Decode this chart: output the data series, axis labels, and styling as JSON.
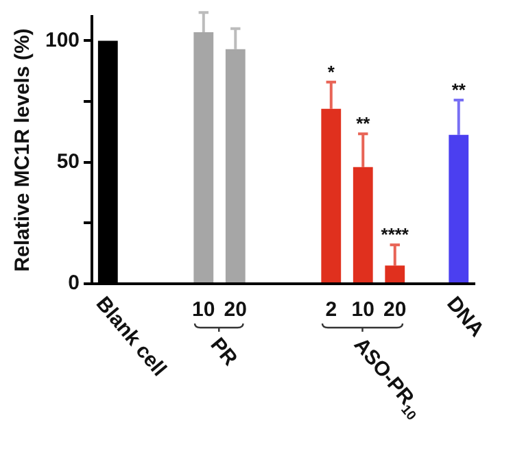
{
  "chart_data": {
    "type": "bar",
    "ylabel": "Relative MC1R levels (%)",
    "categories": [
      "Blank cell",
      null,
      null,
      "10",
      "20",
      null,
      null,
      "2",
      "10",
      "20",
      null,
      "DNA"
    ],
    "values": [
      100,
      null,
      null,
      103.5,
      96.5,
      null,
      null,
      72,
      48,
      7.5,
      null,
      61.3
    ],
    "colors": [
      "#000000",
      null,
      null,
      "#a6a6a6",
      "#a6a6a6",
      null,
      null,
      "#e0301e",
      "#e0301e",
      "#e0301e",
      null,
      "#4b3ff0"
    ],
    "errors": [
      null,
      null,
      null,
      [
        103.5,
        111.6
      ],
      [
        96.5,
        105
      ],
      null,
      null,
      [
        72,
        83
      ],
      [
        48,
        61.7
      ],
      [
        7.5,
        16
      ],
      null,
      [
        61.3,
        75.6
      ]
    ],
    "value_labels": [
      null,
      null,
      null,
      null,
      null,
      null,
      null,
      "*",
      "**",
      "****",
      null,
      "**"
    ],
    "annotations": [
      "PR",
      "ASO-PR$_{10}$"
    ],
    "ylim": [
      0,
      110
    ],
    "yticks": [
      0,
      {
        "value": 25,
        "label": null
      },
      50,
      {
        "value": 75,
        "label": null
      },
      100
    ],
    "grid": false,
    "legend": false
  }
}
